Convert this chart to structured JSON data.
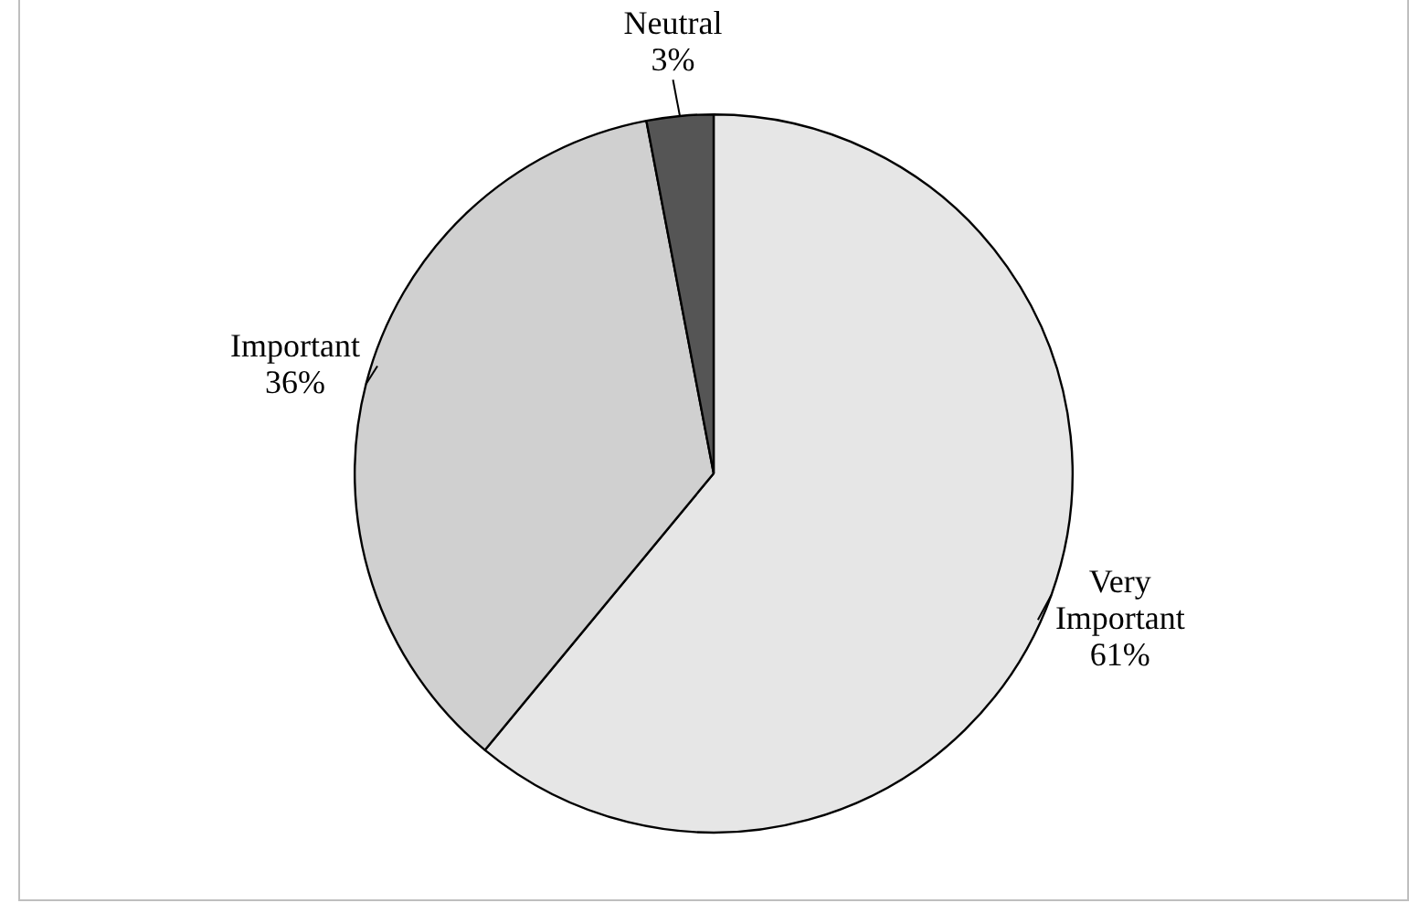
{
  "chart_data": {
    "type": "pie",
    "categories": [
      "Very Important",
      "Important",
      "Neutral"
    ],
    "values": [
      61,
      36,
      3
    ],
    "colors": [
      "#e6e6e6",
      "#d0d0d0",
      "#555555"
    ],
    "value_labels": [
      "61%",
      "36%",
      "3%"
    ],
    "legend": false
  }
}
